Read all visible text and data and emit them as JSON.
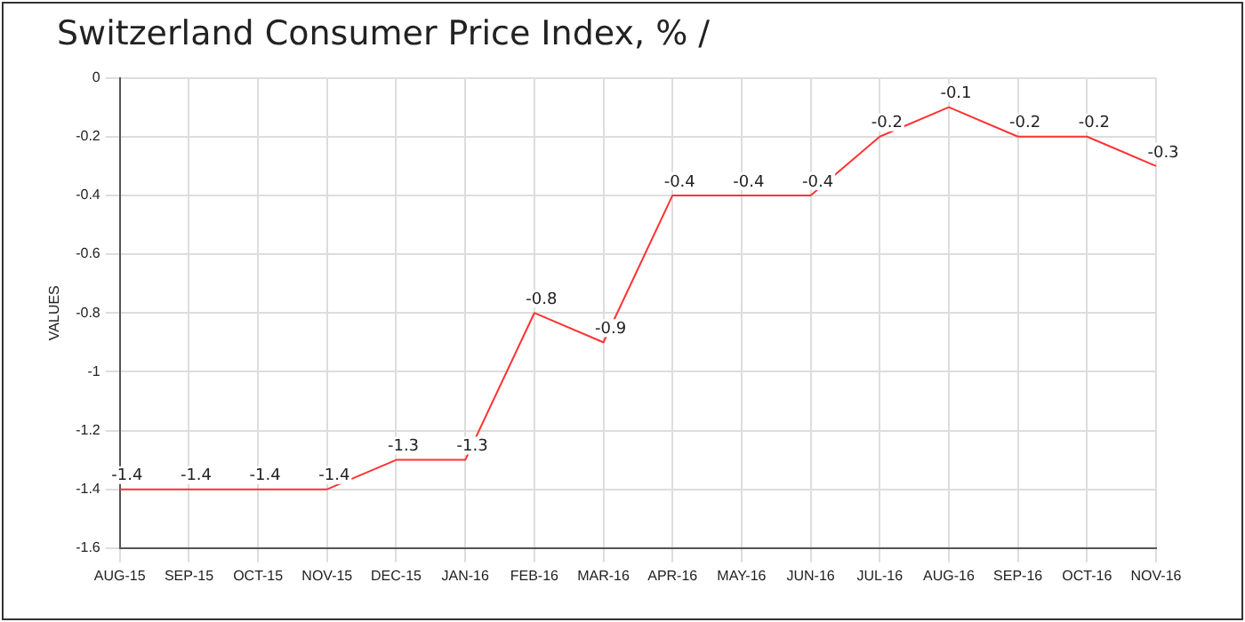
{
  "chart_data": {
    "type": "line",
    "title": "Switzerland Consumer Price Index, %  /",
    "ylabel": "VALUES",
    "categories": [
      "AUG-15",
      "SEP-15",
      "OCT-15",
      "NOV-15",
      "DEC-15",
      "JAN-16",
      "FEB-16",
      "MAR-16",
      "APR-16",
      "MAY-16",
      "JUN-16",
      "JUL-16",
      "AUG-16",
      "SEP-16",
      "OCT-16",
      "NOV-16"
    ],
    "series": [
      {
        "color": "#ff3333",
        "values": [
          -1.4,
          -1.4,
          -1.4,
          -1.4,
          -1.3,
          -1.3,
          -0.8,
          -0.9,
          -0.4,
          -0.4,
          -0.4,
          -0.2,
          -0.1,
          -0.2,
          -0.2,
          -0.3
        ]
      }
    ],
    "ylim": [
      -1.6,
      0
    ],
    "yticks": [
      -1.6,
      -1.4,
      -1.2,
      -1,
      -0.8,
      -0.6,
      -0.4,
      -0.2,
      0
    ],
    "grid": true,
    "legend": false,
    "marker": "none",
    "line_style": "solid",
    "data_labels": true
  }
}
